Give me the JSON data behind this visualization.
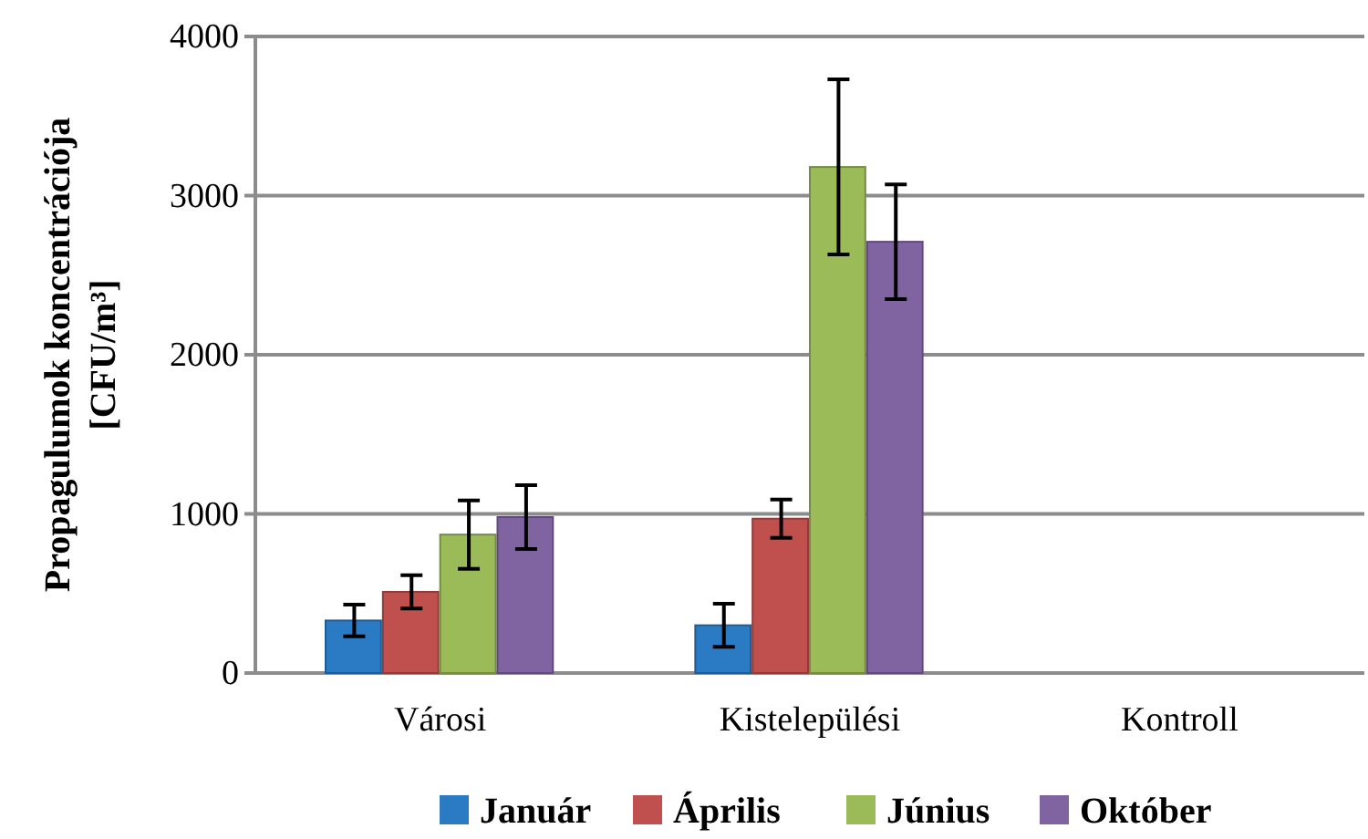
{
  "chart_data": {
    "type": "bar",
    "ylabel": "Propagulumok koncentrációja\n[CFU/m³]",
    "categories": [
      "Városi",
      "Kistelepülési",
      "Kontroll"
    ],
    "series": [
      {
        "name": "Január",
        "color": "#2b7bc4",
        "values": [
          330,
          300,
          0
        ],
        "errors": [
          100,
          135,
          null
        ]
      },
      {
        "name": "Április",
        "color": "#c0504d",
        "values": [
          510,
          970,
          0
        ],
        "errors": [
          105,
          120,
          null
        ]
      },
      {
        "name": "Június",
        "color": "#9bbb59",
        "values": [
          870,
          3180,
          0
        ],
        "errors": [
          215,
          550,
          null
        ]
      },
      {
        "name": "Október",
        "color": "#8064a2",
        "values": [
          980,
          2710,
          0
        ],
        "errors": [
          200,
          360,
          null
        ]
      }
    ],
    "ylim": [
      0,
      4000
    ],
    "yticks": [
      0,
      1000,
      2000,
      3000,
      4000
    ],
    "grid": "y",
    "legend": "bottom"
  }
}
